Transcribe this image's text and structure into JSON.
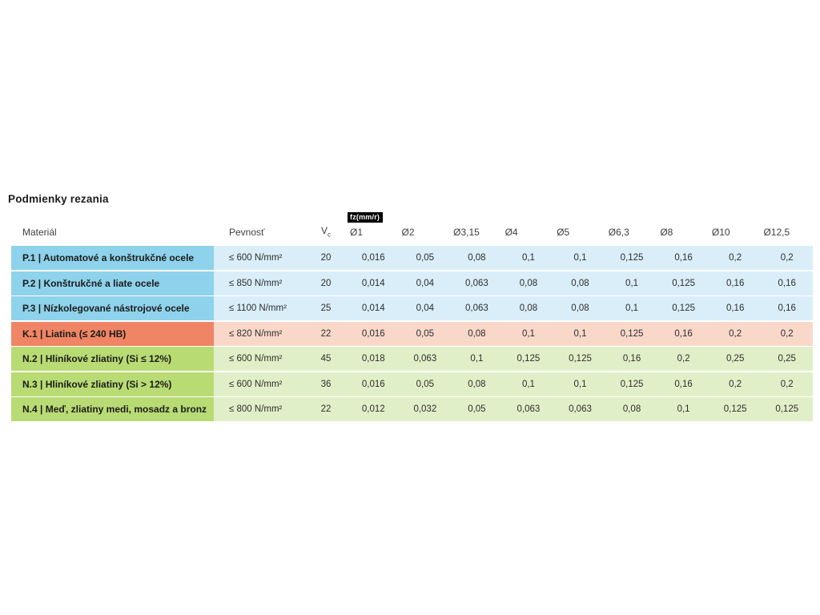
{
  "page": {
    "title": "Podmienky rezania"
  },
  "colors": {
    "steel_material_bg": "#8ED2EB",
    "steel_row_bg": "#D9EEF9",
    "cast_iron_material_bg": "#EF8565",
    "cast_iron_row_bg": "#F9D8CA",
    "aluminium_material_bg": "#B9DB74",
    "aluminium_row_bg": "#E1EFC8",
    "badge_bg": "#000000",
    "badge_text": "#FFFFFF",
    "header_text": "#3E3E3D",
    "body_text": "#2D2D2C"
  },
  "table": {
    "header": {
      "material": "Materiál",
      "strength": "Pevnosť",
      "vc_main": "V",
      "vc_sub": "c",
      "fz_badge": "fz(mm/r)",
      "diameters": [
        "Ø1",
        "Ø2",
        "Ø3,15",
        "Ø4",
        "Ø5",
        "Ø6,3",
        "Ø8",
        "Ø10",
        "Ø12,5"
      ]
    },
    "rows": [
      {
        "group": "steel",
        "material": "P.1 | Automatové a konštrukčné ocele",
        "strength": "≤ 600 N/mm²",
        "vc": "20",
        "fz": [
          "0,016",
          "0,05",
          "0,08",
          "0,1",
          "0,1",
          "0,125",
          "0,16",
          "0,2",
          "0,2"
        ]
      },
      {
        "group": "steel",
        "material": "P.2 | Konštrukčné a liate ocele",
        "strength": "≤ 850 N/mm²",
        "vc": "20",
        "fz": [
          "0,014",
          "0,04",
          "0,063",
          "0,08",
          "0,08",
          "0,1",
          "0,125",
          "0,16",
          "0,16"
        ]
      },
      {
        "group": "steel",
        "material": "P.3 | Nízkolegované nástrojové ocele",
        "strength": "≤ 1100 N/mm²",
        "vc": "25",
        "fz": [
          "0,014",
          "0,04",
          "0,063",
          "0,08",
          "0,08",
          "0,1",
          "0,125",
          "0,16",
          "0,16"
        ]
      },
      {
        "group": "cast",
        "material": "K.1 | Liatina (≤ 240 HB)",
        "strength": "≤ 820 N/mm²",
        "vc": "22",
        "fz": [
          "0,016",
          "0,05",
          "0,08",
          "0,1",
          "0,1",
          "0,125",
          "0,16",
          "0,2",
          "0,2"
        ]
      },
      {
        "group": "alu",
        "material": "N.2 | Hliníkové zliatiny (Si ≤ 12%)",
        "strength": "≤ 600 N/mm²",
        "vc": "45",
        "fz": [
          "0,018",
          "0,063",
          "0,1",
          "0,125",
          "0,125",
          "0,16",
          "0,2",
          "0,25",
          "0,25"
        ]
      },
      {
        "group": "alu",
        "material": "N.3 | Hliníkové zliatiny (Si > 12%)",
        "strength": "≤ 600 N/mm²",
        "vc": "36",
        "fz": [
          "0,016",
          "0,05",
          "0,08",
          "0,1",
          "0,1",
          "0,125",
          "0,16",
          "0,2",
          "0,2"
        ]
      },
      {
        "group": "alu",
        "material": "N.4 | Meď, zliatiny medi, mosadz a bronz",
        "strength": "≤ 800 N/mm²",
        "vc": "22",
        "fz": [
          "0,012",
          "0,032",
          "0,05",
          "0,063",
          "0,063",
          "0,08",
          "0,1",
          "0,125",
          "0,125"
        ]
      }
    ]
  }
}
